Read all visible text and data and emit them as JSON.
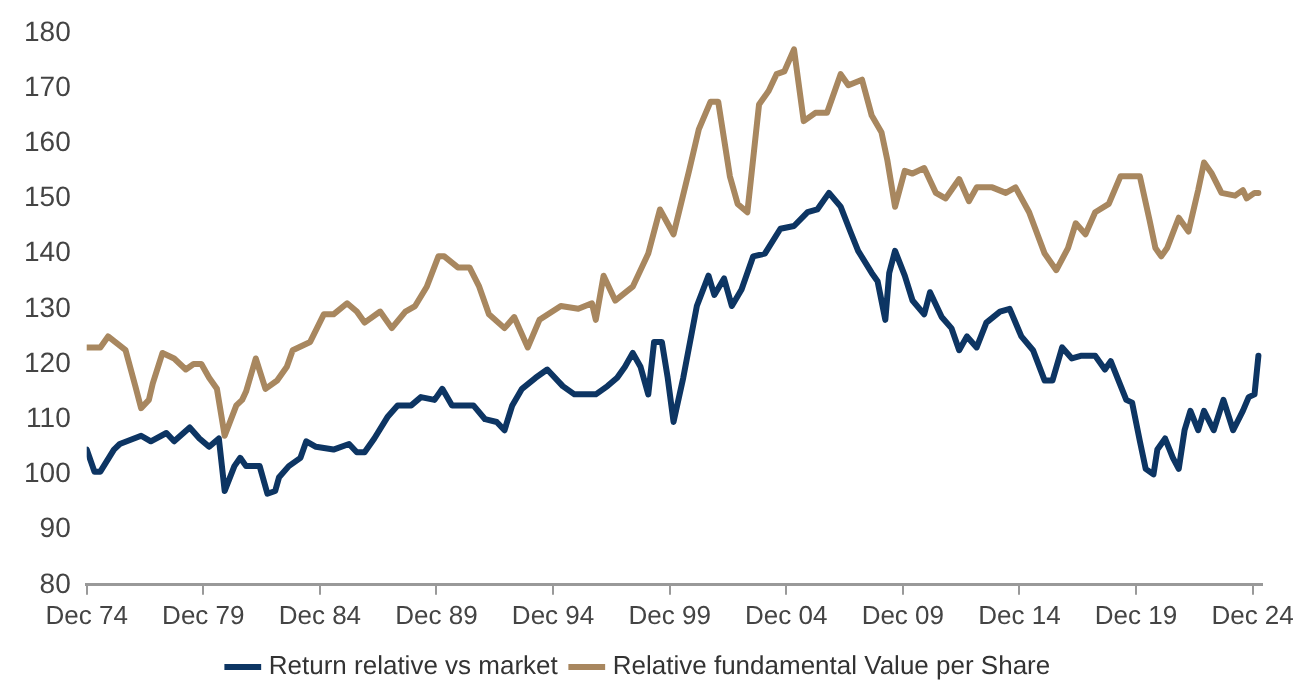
{
  "chart_data": {
    "type": "line",
    "legend": "bottom",
    "grid": false,
    "marker": "none",
    "line_style": "solid",
    "xlim": [
      "1974-12",
      "2025-05"
    ],
    "ylim": [
      80,
      180
    ],
    "yticks": [
      80,
      90,
      100,
      110,
      120,
      130,
      140,
      150,
      160,
      170,
      180
    ],
    "xticks": [
      {
        "value": "1974-12",
        "label": "Dec 74"
      },
      {
        "value": "1979-12",
        "label": "Dec 79"
      },
      {
        "value": "1984-12",
        "label": "Dec 84"
      },
      {
        "value": "1989-12",
        "label": "Dec 89"
      },
      {
        "value": "1994-12",
        "label": "Dec 94"
      },
      {
        "value": "1999-12",
        "label": "Dec 99"
      },
      {
        "value": "2004-12",
        "label": "Dec 04"
      },
      {
        "value": "2009-12",
        "label": "Dec 09"
      },
      {
        "value": "2014-12",
        "label": "Dec 14"
      },
      {
        "value": "2019-12",
        "label": "Dec 19"
      },
      {
        "value": "2024-12",
        "label": "Dec 24"
      }
    ],
    "series": [
      {
        "name": "Return relative vs market",
        "color": "#0d3563",
        "x": [
          "1974-12",
          "1975-04",
          "1975-07",
          "1976-02",
          "1976-05",
          "1977-04",
          "1977-09",
          "1978-05",
          "1978-09",
          "1979-05",
          "1979-10",
          "1980-03",
          "1980-08",
          "1980-11",
          "1981-04",
          "1981-07",
          "1981-10",
          "1982-05",
          "1982-09",
          "1983-01",
          "1983-03",
          "1983-08",
          "1984-02",
          "1984-05",
          "1984-10",
          "1985-07",
          "1986-03",
          "1986-07",
          "1986-11",
          "1987-04",
          "1987-11",
          "1988-04",
          "1988-11",
          "1989-04",
          "1989-11",
          "1990-03",
          "1990-08",
          "1991-07",
          "1992-01",
          "1992-07",
          "1992-11",
          "1993-03",
          "1993-08",
          "1994-03",
          "1994-09",
          "1995-05",
          "1995-11",
          "1996-10",
          "1997-04",
          "1997-09",
          "1998-01",
          "1998-05",
          "1998-09",
          "1999-01",
          "1999-04",
          "1999-08",
          "1999-11",
          "2000-02",
          "2000-07",
          "2001-02",
          "2001-08",
          "2001-11",
          "2002-04",
          "2002-08",
          "2003-01",
          "2003-07",
          "2004-01",
          "2004-09",
          "2005-04",
          "2005-11",
          "2006-04",
          "2006-10",
          "2007-04",
          "2007-09",
          "2008-01",
          "2008-08",
          "2008-11",
          "2009-03",
          "2009-05",
          "2009-08",
          "2010-01",
          "2010-05",
          "2010-11",
          "2011-02",
          "2011-08",
          "2012-01",
          "2012-05",
          "2012-09",
          "2013-02",
          "2013-07",
          "2014-02",
          "2014-07",
          "2015-01",
          "2015-07",
          "2016-01",
          "2016-05",
          "2016-10",
          "2017-03",
          "2017-08",
          "2018-03",
          "2018-08",
          "2018-11",
          "2019-07",
          "2019-10",
          "2020-02",
          "2020-05",
          "2020-09",
          "2020-11",
          "2021-03",
          "2021-07",
          "2021-10",
          "2022-01",
          "2022-04",
          "2022-08",
          "2022-11",
          "2023-04",
          "2023-09",
          "2024-02",
          "2024-07",
          "2024-10",
          "2025-01",
          "2025-03"
        ],
        "values": [
          104.5,
          100.5,
          100.5,
          104.5,
          105.5,
          107,
          106,
          107.5,
          106,
          108.5,
          106.5,
          105,
          106.5,
          97,
          101.5,
          103,
          101.5,
          101.5,
          96.5,
          97,
          99.5,
          101.5,
          103,
          106,
          105,
          104.5,
          105.5,
          104,
          104,
          106.5,
          110.5,
          112.5,
          112.5,
          114,
          113.5,
          115.5,
          112.5,
          112.5,
          110,
          109.5,
          108,
          112.5,
          115.5,
          117.5,
          119,
          116,
          114.5,
          114.5,
          116,
          117.5,
          119.5,
          122,
          119.5,
          114.5,
          124,
          124,
          117.5,
          109.5,
          117.5,
          130.5,
          136,
          132.5,
          135.5,
          130.5,
          133.5,
          139.5,
          140,
          144.5,
          145,
          147.5,
          148,
          151,
          148.5,
          144,
          140.5,
          136.5,
          135,
          128,
          136.5,
          140.5,
          136,
          131.5,
          129,
          133,
          128.5,
          126.5,
          122.5,
          125,
          123,
          127.5,
          129.5,
          130,
          125,
          122.5,
          117,
          117,
          123,
          121,
          121.5,
          121.5,
          119,
          120.5,
          113.5,
          113,
          106,
          101,
          100,
          104.5,
          106.5,
          103,
          101,
          108,
          111.5,
          108,
          111.5,
          108,
          113.5,
          108,
          111.5,
          114,
          114.5,
          121.5
        ]
      },
      {
        "name": "Relative fundamental Value per Share",
        "color": "#a8875f",
        "x": [
          "1974-12",
          "1975-07",
          "1975-11",
          "1976-08",
          "1977-01",
          "1977-04",
          "1977-08",
          "1977-10",
          "1978-03",
          "1978-09",
          "1979-03",
          "1979-07",
          "1979-11",
          "1980-03",
          "1980-07",
          "1980-11",
          "1981-05",
          "1981-08",
          "1981-10",
          "1982-03",
          "1982-08",
          "1983-02",
          "1983-07",
          "1983-10",
          "1984-07",
          "1985-02",
          "1985-07",
          "1986-02",
          "1986-07",
          "1986-11",
          "1987-07",
          "1988-01",
          "1988-08",
          "1989-01",
          "1989-07",
          "1990-01",
          "1990-04",
          "1990-11",
          "1991-05",
          "1991-10",
          "1992-03",
          "1992-11",
          "1993-04",
          "1993-11",
          "1994-05",
          "1995-04",
          "1996-01",
          "1996-08",
          "1996-10",
          "1997-02",
          "1997-08",
          "1998-05",
          "1999-01",
          "1999-07",
          "2000-02",
          "2000-10",
          "2001-03",
          "2001-09",
          "2002-01",
          "2002-07",
          "2002-11",
          "2003-04",
          "2003-10",
          "2004-03",
          "2004-07",
          "2004-11",
          "2005-04",
          "2005-09",
          "2006-03",
          "2006-09",
          "2007-04",
          "2007-08",
          "2008-03",
          "2008-08",
          "2009-01",
          "2009-04",
          "2009-08",
          "2010-01",
          "2010-05",
          "2010-11",
          "2011-05",
          "2011-10",
          "2012-05",
          "2012-10",
          "2013-02",
          "2013-10",
          "2014-05",
          "2014-10",
          "2015-05",
          "2016-01",
          "2016-07",
          "2017-01",
          "2017-05",
          "2017-10",
          "2018-03",
          "2018-10",
          "2019-04",
          "2020-02",
          "2020-07",
          "2020-10",
          "2021-01",
          "2021-04",
          "2021-10",
          "2022-03",
          "2022-08",
          "2022-11",
          "2023-03",
          "2023-08",
          "2024-03",
          "2024-07",
          "2024-09",
          "2025-01",
          "2025-03"
        ],
        "values": [
          123,
          123,
          125,
          122.5,
          116,
          112,
          113.5,
          116.5,
          122,
          121,
          119,
          120,
          120,
          117.5,
          115.5,
          107,
          112.5,
          113.5,
          115,
          121,
          115.5,
          117,
          119.5,
          122.5,
          124,
          129,
          129,
          131,
          129.5,
          127.5,
          129.5,
          126.5,
          129.5,
          130.5,
          134,
          139.5,
          139.5,
          137.5,
          137.5,
          134,
          129,
          126.5,
          128.5,
          123,
          128,
          130.5,
          130,
          131,
          128,
          136,
          131.5,
          134,
          140,
          148,
          143.5,
          155,
          162.5,
          167.5,
          167.5,
          154,
          149,
          147.5,
          167,
          169.5,
          172.5,
          173,
          177,
          164,
          165.5,
          165.5,
          172.5,
          170.5,
          171.5,
          165,
          162,
          157,
          148.5,
          155,
          154.5,
          155.5,
          151,
          150,
          153.5,
          149.5,
          152,
          152,
          151,
          152,
          147.5,
          140,
          137,
          141,
          145.5,
          143.5,
          147.5,
          149,
          154,
          154,
          146,
          141,
          139.5,
          141,
          146.5,
          144,
          151.5,
          156.5,
          154.5,
          151,
          150.5,
          151.5,
          150,
          151,
          151
        ]
      }
    ]
  }
}
